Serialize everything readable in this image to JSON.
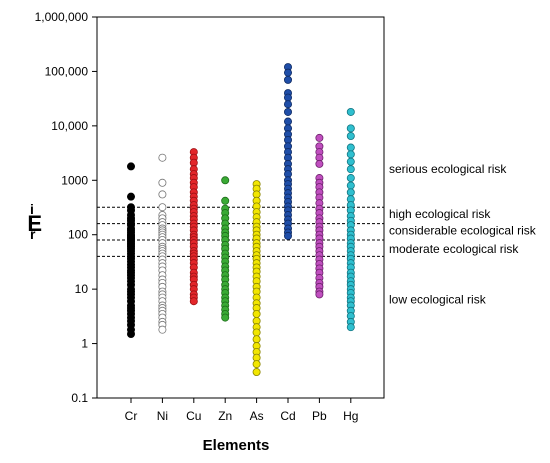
{
  "chart_data": {
    "type": "scatter",
    "xlabel": "Elements",
    "ylabel_main": "E",
    "ylabel_sup": "i",
    "ylabel_sub": "r",
    "yscale": "log",
    "ylim": [
      0.1,
      1000000
    ],
    "yticks": [
      0.1,
      1,
      10,
      100,
      1000,
      10000,
      100000,
      1000000
    ],
    "ytick_labels": [
      "0.1",
      "1",
      "10",
      "100",
      "1000",
      "10,000",
      "100,000",
      "1,000,000"
    ],
    "categories": [
      "Cr",
      "Ni",
      "Cu",
      "Zn",
      "As",
      "Cd",
      "Pb",
      "Hg"
    ],
    "thresholds": [
      40,
      80,
      160,
      320
    ],
    "risk_labels": [
      {
        "text": "serious ecological risk",
        "y": 1600
      },
      {
        "text": "high ecological risk",
        "y": 240
      },
      {
        "text": "considerable ecological risk",
        "y": 120
      },
      {
        "text": "moderate ecological risk",
        "y": 55
      },
      {
        "text": "low ecological risk",
        "y": 6.5
      }
    ],
    "series": [
      {
        "category": "Cr",
        "fill": "#000000",
        "stroke": "#000000",
        "values": [
          1800,
          500,
          320,
          280,
          230,
          200,
          180,
          160,
          150,
          130,
          120,
          110,
          100,
          95,
          90,
          85,
          80,
          75,
          70,
          65,
          60,
          55,
          50,
          45,
          40,
          36,
          32,
          28,
          25,
          22,
          20,
          18,
          16,
          14,
          12,
          10,
          9,
          8,
          7,
          6,
          5,
          4.5,
          4,
          3.5,
          3,
          2.6,
          2.2,
          1.8,
          1.5
        ]
      },
      {
        "category": "Ni",
        "fill": "#ffffff",
        "stroke": "#777777",
        "values": [
          2600,
          900,
          550,
          320,
          230,
          200,
          170,
          150,
          130,
          120,
          110,
          100,
          90,
          80,
          70,
          60,
          55,
          50,
          45,
          40,
          35,
          30,
          26,
          22,
          18,
          15,
          13,
          11,
          9,
          8,
          7,
          6,
          5,
          4.5,
          4,
          3.5,
          3,
          2.5,
          2.2,
          1.8
        ]
      },
      {
        "category": "Cu",
        "fill": "#e3262a",
        "stroke": "#9c1114",
        "values": [
          3300,
          2600,
          2100,
          1600,
          1300,
          1100,
          900,
          750,
          600,
          500,
          420,
          350,
          300,
          260,
          220,
          190,
          160,
          140,
          120,
          100,
          90,
          80,
          70,
          60,
          50,
          45,
          40,
          35,
          30,
          25,
          20,
          17,
          15,
          12,
          10,
          8,
          7,
          6
        ]
      },
      {
        "category": "Zn",
        "fill": "#3aaa35",
        "stroke": "#1e6e1b",
        "values": [
          1000,
          420,
          300,
          250,
          200,
          160,
          130,
          110,
          95,
          80,
          65,
          55,
          45,
          38,
          32,
          26,
          22,
          18,
          15,
          12,
          10,
          8.5,
          7,
          6,
          5,
          4.2,
          3.5,
          3
        ]
      },
      {
        "category": "As",
        "fill": "#f2e600",
        "stroke": "#8a8400",
        "values": [
          850,
          700,
          550,
          420,
          330,
          260,
          210,
          170,
          140,
          120,
          100,
          85,
          70,
          60,
          50,
          42,
          36,
          30,
          25,
          21,
          17,
          14,
          11,
          9,
          7,
          5.5,
          4.5,
          3.5,
          2.6,
          2,
          1.6,
          1.2,
          0.9,
          0.7,
          0.55,
          0.42,
          0.3
        ]
      },
      {
        "category": "Cd",
        "fill": "#1f4ea8",
        "stroke": "#0e2a63",
        "values": [
          120000,
          95000,
          70000,
          40000,
          33000,
          25000,
          18000,
          12000,
          9000,
          7000,
          5500,
          4200,
          3300,
          2600,
          2000,
          1600,
          1300,
          1000,
          850,
          700,
          580,
          480,
          400,
          330,
          280,
          230,
          190,
          160,
          130,
          110,
          95
        ]
      },
      {
        "category": "Pb",
        "fill": "#c04fbf",
        "stroke": "#6e226d",
        "values": [
          6000,
          4200,
          3300,
          2600,
          2000,
          1100,
          900,
          750,
          600,
          480,
          380,
          300,
          250,
          200,
          170,
          140,
          120,
          100,
          85,
          70,
          60,
          50,
          42,
          35,
          29,
          24,
          20,
          16,
          13,
          11,
          9,
          8
        ]
      },
      {
        "category": "Hg",
        "fill": "#2fbfcf",
        "stroke": "#137480",
        "values": [
          18000,
          9000,
          6500,
          4000,
          3000,
          2200,
          1600,
          1100,
          800,
          600,
          450,
          350,
          280,
          220,
          180,
          150,
          120,
          100,
          85,
          70,
          60,
          50,
          42,
          36,
          30,
          25,
          20,
          17,
          14,
          12,
          10,
          8.5,
          7,
          6,
          5,
          4,
          3.2,
          2.5,
          2
        ]
      }
    ]
  }
}
